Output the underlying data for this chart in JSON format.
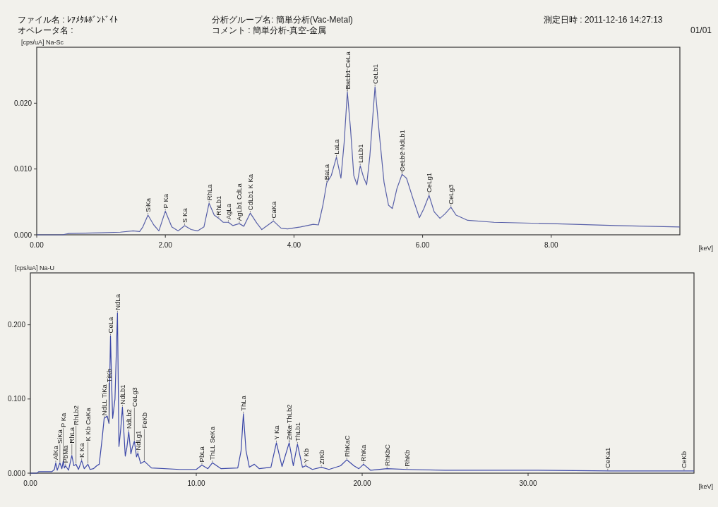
{
  "chart_data": [
    {
      "type": "line",
      "ylabel": "[cps/uA] Na-Sc",
      "xlabel": "[keV]",
      "xlim": [
        0,
        10
      ],
      "ylim": [
        0,
        0.0285
      ],
      "xticks": [
        {
          "value": 0,
          "label": "0.00"
        },
        {
          "value": 2,
          "label": "2.00"
        },
        {
          "value": 4,
          "label": "4.00"
        },
        {
          "value": 6,
          "label": "6.00"
        },
        {
          "value": 8,
          "label": "8.00"
        }
      ],
      "yticks": [
        {
          "value": 0,
          "label": "0.000"
        },
        {
          "value": 0.01,
          "label": "0.010"
        },
        {
          "value": 0.02,
          "label": "0.020"
        }
      ],
      "color": "#5860a8",
      "x": [
        0,
        0.4,
        0.5,
        1.0,
        1.3,
        1.5,
        1.6,
        1.65,
        1.73,
        1.82,
        1.9,
        2.0,
        2.1,
        2.2,
        2.3,
        2.4,
        2.5,
        2.6,
        2.68,
        2.76,
        2.83,
        2.9,
        2.98,
        3.05,
        3.15,
        3.22,
        3.32,
        3.42,
        3.5,
        3.68,
        3.8,
        3.9,
        4.1,
        4.3,
        4.38,
        4.45,
        4.51,
        4.58,
        4.66,
        4.73,
        4.78,
        4.83,
        4.88,
        4.93,
        4.98,
        5.03,
        5.08,
        5.13,
        5.18,
        5.26,
        5.33,
        5.4,
        5.47,
        5.53,
        5.6,
        5.68,
        5.75,
        5.85,
        5.95,
        6.02,
        6.1,
        6.18,
        6.27,
        6.35,
        6.44,
        6.52,
        6.7,
        7.11,
        8.0,
        9.0,
        10.0
      ],
      "values": [
        0,
        0,
        0.0002,
        0.0003,
        0.0004,
        0.0006,
        0.0005,
        0.0012,
        0.003,
        0.0015,
        0.0006,
        0.0036,
        0.0012,
        0.0006,
        0.0014,
        0.0008,
        0.0006,
        0.0012,
        0.0048,
        0.003,
        0.0025,
        0.0019,
        0.0019,
        0.0014,
        0.0017,
        0.0013,
        0.0033,
        0.0018,
        0.0008,
        0.0021,
        0.001,
        0.0009,
        0.0012,
        0.0016,
        0.0015,
        0.0045,
        0.0079,
        0.009,
        0.0118,
        0.0086,
        0.014,
        0.0217,
        0.016,
        0.009,
        0.0076,
        0.0105,
        0.0088,
        0.0076,
        0.012,
        0.0225,
        0.015,
        0.008,
        0.0045,
        0.004,
        0.007,
        0.0092,
        0.0086,
        0.0055,
        0.0026,
        0.004,
        0.006,
        0.0035,
        0.0025,
        0.0032,
        0.0042,
        0.003,
        0.0022,
        0.0019,
        0.0017,
        0.0014,
        0.0012
      ],
      "annotations": [
        "ファイル名 : ﾚｱﾒﾀﾙﾎﾞﾝﾄﾞｲﾄ",
        "オペレータ名 :",
        "分析グループ名: 簡単分析(Vac-Metal)",
        "コメント : 簡単分析-真空-金属",
        "測定日時 : 2011-12-16 14:27:13",
        "01/01",
        {
          "text": "SiKa",
          "x": 1.73,
          "y": 0.003
        },
        {
          "text": "P Ka",
          "x": 2.0,
          "y": 0.0036
        },
        {
          "text": "S Ka",
          "x": 2.3,
          "y": 0.0014
        },
        {
          "text": "RhLa",
          "x": 2.68,
          "y": 0.0048
        },
        {
          "text": "RhLb1",
          "x": 2.83,
          "y": 0.0025
        },
        {
          "text": "AgLa",
          "x": 2.98,
          "y": 0.0019
        },
        {
          "text": "AgLb1 CdLa",
          "x": 3.15,
          "y": 0.0017
        },
        {
          "text": "CdLb1 K Ka",
          "x": 3.32,
          "y": 0.0033
        },
        {
          "text": "CaKa",
          "x": 3.68,
          "y": 0.0021
        },
        {
          "text": "BaLa",
          "x": 4.51,
          "y": 0.0079
        },
        {
          "text": "LaLa",
          "x": 4.66,
          "y": 0.0118
        },
        {
          "text": "BaLb1",
          "x": 4.83,
          "y": 0.0217
        },
        {
          "text": "CeLa",
          "x": 4.83,
          "y": 0.0217
        },
        {
          "text": "LaLb1",
          "x": 5.03,
          "y": 0.0105
        },
        {
          "text": "CeLb1",
          "x": 5.26,
          "y": 0.0225
        },
        {
          "text": "CeLb2",
          "x": 5.68,
          "y": 0.0092
        },
        {
          "text": "NdLb1",
          "x": 5.68,
          "y": 0.0092
        },
        {
          "text": "CeLg1",
          "x": 6.1,
          "y": 0.006
        },
        {
          "text": "CeLg3",
          "x": 6.44,
          "y": 0.0042
        }
      ]
    },
    {
      "type": "line",
      "ylabel": "[cps/uA] Na-U",
      "xlabel": "[keV]",
      "xlim": [
        0,
        40
      ],
      "ylim": [
        0,
        0.27
      ],
      "xticks": [
        {
          "value": 0,
          "label": "0.00"
        },
        {
          "value": 10,
          "label": "10.00"
        },
        {
          "value": 20,
          "label": "20.00"
        },
        {
          "value": 30,
          "label": "30.00"
        }
      ],
      "yticks": [
        {
          "value": 0,
          "label": "0.000"
        },
        {
          "value": 0.1,
          "label": "0.100"
        },
        {
          "value": 0.2,
          "label": "0.200"
        }
      ],
      "color": "#3c48a8",
      "x": [
        0,
        0.4,
        0.5,
        1.3,
        1.45,
        1.53,
        1.62,
        1.78,
        1.9,
        1.98,
        2.05,
        2.12,
        2.3,
        2.5,
        2.62,
        2.75,
        2.9,
        3.09,
        3.25,
        3.47,
        3.6,
        3.8,
        4.0,
        4.15,
        4.32,
        4.45,
        4.63,
        4.74,
        4.83,
        4.9,
        4.96,
        5.1,
        5.25,
        5.34,
        5.45,
        5.55,
        5.65,
        5.72,
        5.82,
        5.93,
        6.06,
        6.15,
        6.27,
        6.4,
        6.48,
        6.65,
        6.87,
        7.3,
        9.0,
        10.0,
        10.34,
        10.7,
        10.97,
        11.5,
        12.5,
        12.7,
        12.84,
        13.0,
        13.2,
        13.5,
        13.8,
        14.5,
        14.83,
        15.17,
        15.6,
        15.85,
        16.1,
        16.4,
        16.6,
        17.0,
        17.54,
        18.0,
        18.7,
        19.07,
        19.5,
        19.8,
        20.08,
        20.5,
        21.5,
        22.7,
        25,
        30,
        35,
        40
      ],
      "values": [
        0,
        0,
        0.002,
        0.002,
        0.005,
        0.014,
        0.004,
        0.014,
        0.006,
        0.016,
        0.007,
        0.01,
        0.004,
        0.024,
        0.01,
        0.012,
        0.005,
        0.017,
        0.006,
        0.012,
        0.005,
        0.006,
        0.01,
        0.012,
        0.045,
        0.074,
        0.077,
        0.067,
        0.185,
        0.12,
        0.074,
        0.1,
        0.216,
        0.036,
        0.06,
        0.089,
        0.05,
        0.023,
        0.035,
        0.056,
        0.026,
        0.035,
        0.043,
        0.022,
        0.027,
        0.013,
        0.016,
        0.007,
        0.005,
        0.005,
        0.011,
        0.006,
        0.014,
        0.006,
        0.007,
        0.03,
        0.08,
        0.03,
        0.008,
        0.012,
        0.006,
        0.008,
        0.041,
        0.009,
        0.041,
        0.01,
        0.039,
        0.008,
        0.01,
        0.005,
        0.008,
        0.005,
        0.01,
        0.018,
        0.01,
        0.006,
        0.012,
        0.004,
        0.006,
        0.005,
        0.004,
        0.004,
        0.003,
        0.003
      ],
      "annotations": [
        {
          "text": "AlKa",
          "x": 1.53,
          "y": 0.014
        },
        {
          "text": "SiKa",
          "x": 1.78,
          "y": 0.014
        },
        {
          "text": "P Ka",
          "x": 1.98,
          "y": 0.016
        },
        {
          "text": "PbMa",
          "x": 2.12,
          "y": 0.01
        },
        {
          "text": "RhLa",
          "x": 2.5,
          "y": 0.024
        },
        {
          "text": "RhLb2",
          "x": 2.75,
          "y": 0.012
        },
        {
          "text": "K Ka",
          "x": 3.09,
          "y": 0.017
        },
        {
          "text": "K Kb CaKa",
          "x": 3.47,
          "y": 0.012
        },
        {
          "text": "NdLL TiKa",
          "x": 4.45,
          "y": 0.074
        },
        {
          "text": "TiKb",
          "x": 4.74,
          "y": 0.067
        },
        {
          "text": "CeLa",
          "x": 4.83,
          "y": 0.185
        },
        {
          "text": "NdLa",
          "x": 5.25,
          "y": 0.216
        },
        {
          "text": "NdLb1",
          "x": 5.55,
          "y": 0.089
        },
        {
          "text": "NdLb2",
          "x": 5.93,
          "y": 0.056
        },
        {
          "text": "CeLg3",
          "x": 6.27,
          "y": 0.043
        },
        {
          "text": "NdLg1",
          "x": 6.48,
          "y": 0.027
        },
        {
          "text": "FeKb",
          "x": 6.87,
          "y": 0.016
        },
        {
          "text": "PbLa",
          "x": 10.34,
          "y": 0.011
        },
        {
          "text": "ThLL SeKa",
          "x": 10.97,
          "y": 0.014
        },
        {
          "text": "ThLa",
          "x": 12.84,
          "y": 0.08
        },
        {
          "text": "Y Ka",
          "x": 14.83,
          "y": 0.041
        },
        {
          "text": "ZrKa",
          "x": 15.6,
          "y": 0.041
        },
        {
          "text": "ThLb2",
          "x": 15.6,
          "y": 0.041
        },
        {
          "text": "ThLb1",
          "x": 16.1,
          "y": 0.039
        },
        {
          "text": "Y Kb",
          "x": 16.6,
          "y": 0.01
        },
        {
          "text": "ZrKb",
          "x": 17.54,
          "y": 0.008
        },
        {
          "text": "RhKaC",
          "x": 19.07,
          "y": 0.018
        },
        {
          "text": "RhKa",
          "x": 20.08,
          "y": 0.012
        },
        {
          "text": "RhKbC",
          "x": 21.5,
          "y": 0.006
        },
        {
          "text": "RhKb",
          "x": 22.7,
          "y": 0.005
        },
        {
          "text": "CeKa1",
          "x": 34.8,
          "y": 0.003
        },
        {
          "text": "CeKb",
          "x": 39.4,
          "y": 0.003
        }
      ]
    }
  ]
}
